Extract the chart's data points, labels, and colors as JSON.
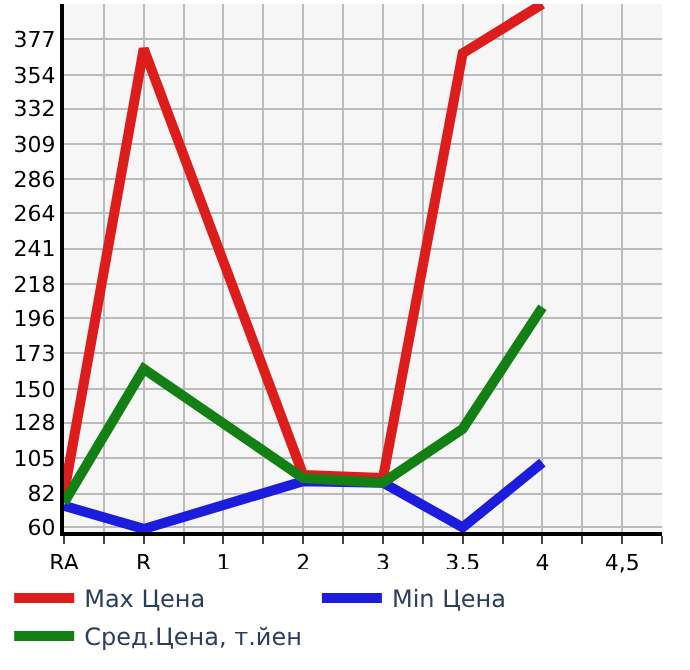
{
  "chart_data": {
    "type": "line",
    "categories": [
      "RA",
      "R",
      "1",
      "2",
      "3",
      "3,5",
      "4",
      "4,5"
    ],
    "series": [
      {
        "name": "Max Цена",
        "color": "#dd1c1c",
        "values": [
          82,
          371,
          null,
          94,
          92,
          368,
          400,
          null
        ]
      },
      {
        "name": "Min Цена",
        "color": "#1c1cdd",
        "values": [
          74,
          59,
          null,
          90,
          89,
          60,
          102,
          null
        ]
      },
      {
        "name": "Сред.Цена, т.йен",
        "color": "#138013",
        "values": [
          76,
          163,
          null,
          92,
          89,
          124,
          203,
          null
        ]
      }
    ],
    "ylim": [
      57,
      400
    ],
    "yticks": [
      60,
      82,
      105,
      128,
      150,
      173,
      196,
      218,
      241,
      264,
      286,
      309,
      332,
      354,
      377
    ],
    "grid": true,
    "legend": "bottom",
    "marker": "none",
    "line_style": "solid"
  }
}
